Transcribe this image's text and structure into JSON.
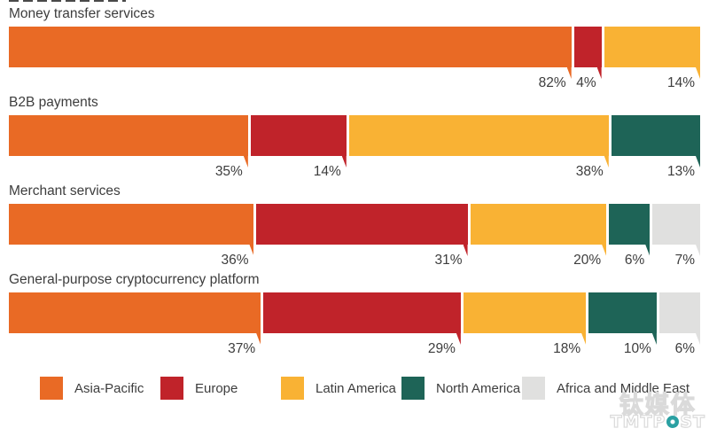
{
  "chart_data": {
    "type": "bar",
    "variant": "stacked-horizontal",
    "unit": "%",
    "xlim": [
      0,
      100
    ],
    "grid": false,
    "legend_position": "bottom",
    "value_labels": "below-segment-right",
    "categories": [
      "Money transfer services",
      "B2B payments",
      "Merchant services",
      "General-purpose cryptocurrency platform"
    ],
    "series": [
      {
        "name": "Asia-Pacific",
        "color": "#E96A25",
        "values": [
          82,
          35,
          36,
          37
        ]
      },
      {
        "name": "Europe",
        "color": "#C0232A",
        "values": [
          4,
          14,
          31,
          29
        ]
      },
      {
        "name": "Latin America",
        "color": "#F9B234",
        "values": [
          14,
          38,
          20,
          18
        ]
      },
      {
        "name": "North America",
        "color": "#1E6457",
        "values": [
          0,
          13,
          6,
          10
        ]
      },
      {
        "name": "Africa and Middle East",
        "color": "#E0E0DF",
        "values": [
          0,
          0,
          7,
          6
        ]
      }
    ]
  },
  "watermark": {
    "cn": "钛媒体",
    "en_left": "TMTP",
    "en_right": "ST",
    "circle_color": "#2AA0A2"
  }
}
